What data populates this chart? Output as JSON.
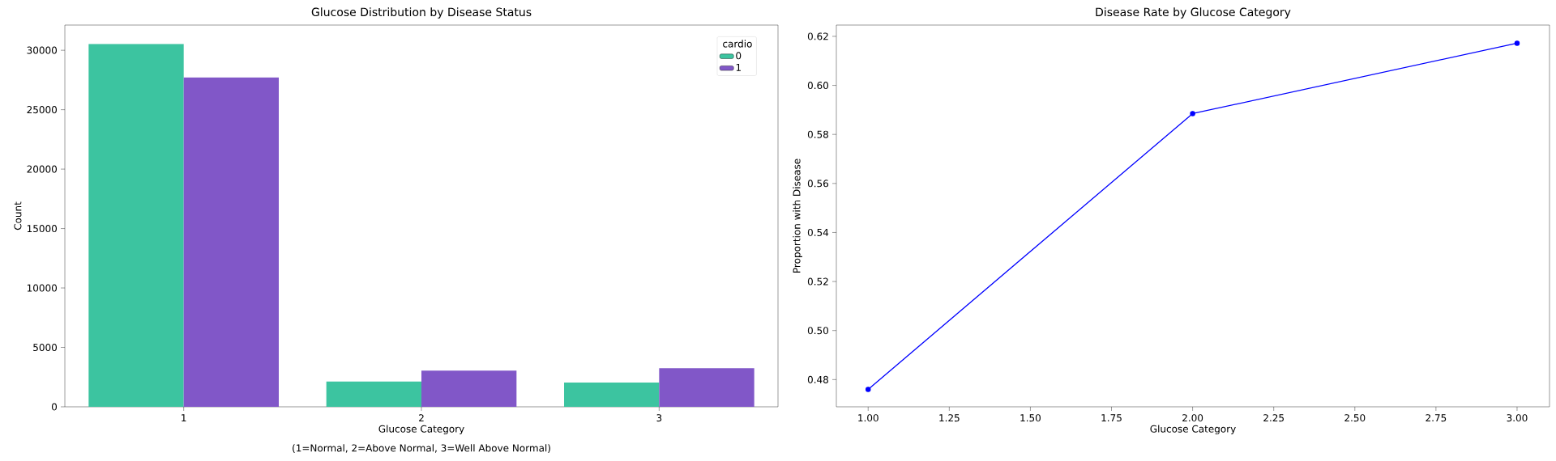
{
  "chart_data": [
    {
      "type": "bar",
      "title": "Glucose Distribution by Disease Status",
      "xlabel": "Glucose Category",
      "ylabel": "Count",
      "annotations": [
        "(1=Normal, 2=Above Normal, 3=Well Above Normal)"
      ],
      "categories": [
        "1",
        "2",
        "3"
      ],
      "series": [
        {
          "name": "0",
          "color": "#3cc4a0",
          "values": [
            30540,
            2120,
            2040
          ]
        },
        {
          "name": "1",
          "color": "#8157c8",
          "values": [
            27710,
            3040,
            3250
          ]
        }
      ],
      "legend_title": "cardio",
      "legend": "top right",
      "ylim": [
        0,
        32120
      ],
      "yticks": [
        0,
        5000,
        10000,
        15000,
        20000,
        25000,
        30000
      ]
    },
    {
      "type": "line",
      "title": "Disease Rate by Glucose Category",
      "xlabel": "Glucose Category",
      "ylabel": "Proportion with Disease",
      "x": [
        1,
        2,
        3
      ],
      "series": [
        {
          "color": "#0000ff",
          "values": [
            0.476,
            0.5885,
            0.6172
          ]
        }
      ],
      "marker": "circle",
      "xlim": [
        0.902,
        3.1
      ],
      "xticks": [
        {
          "value": 1,
          "label": "1.00"
        },
        {
          "value": 1.25,
          "label": "1.25"
        },
        {
          "value": 1.5,
          "label": "1.50"
        },
        {
          "value": 1.75,
          "label": "1.75"
        },
        {
          "value": 2,
          "label": "2.00"
        },
        {
          "value": 2.25,
          "label": "2.25"
        },
        {
          "value": 2.5,
          "label": "2.50"
        },
        {
          "value": 2.75,
          "label": "2.75"
        },
        {
          "value": 3,
          "label": "3.00"
        }
      ],
      "ylim": [
        0.4689,
        0.6246
      ],
      "yticks": [
        {
          "value": 0.48,
          "label": "0.48"
        },
        {
          "value": 0.5,
          "label": "0.50"
        },
        {
          "value": 0.52,
          "label": "0.52"
        },
        {
          "value": 0.54,
          "label": "0.54"
        },
        {
          "value": 0.56,
          "label": "0.56"
        },
        {
          "value": 0.58,
          "label": "0.58"
        },
        {
          "value": 0.6,
          "label": "0.60"
        },
        {
          "value": 0.62,
          "label": "0.62"
        }
      ]
    }
  ]
}
